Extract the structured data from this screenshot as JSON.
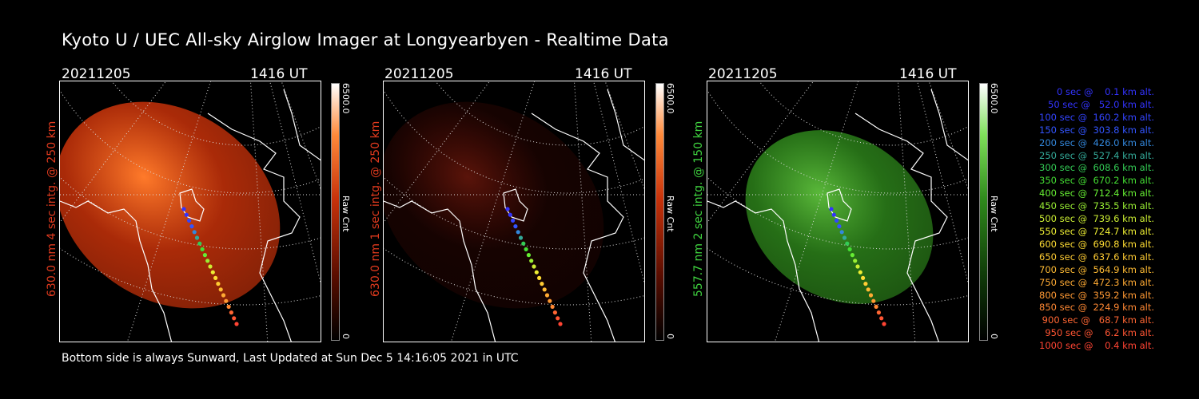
{
  "header": {
    "title": "Kyoto U / UEC All-sky Airglow Imager at Longyearbyen - Realtime Data"
  },
  "footer": {
    "text": "Bottom side is always Sunward, Last Updated at Sun Dec  5 14:16:05 2021 in UTC"
  },
  "panels": [
    {
      "date": "20211205",
      "time": "1416 UT",
      "side_label": "630.0 nm 4 sec intg. @ 250 km",
      "label_color": "#e03a1e",
      "cbar_max": "6500.0",
      "cbar_min": "0",
      "cbar_unit": "Raw Cnt",
      "glow_color": "#c8320a",
      "glow_level": 0.85
    },
    {
      "date": "20211205",
      "time": "1416 UT",
      "side_label": "630.0 nm 1 sec intg. @ 250 km",
      "label_color": "#e03a1e",
      "cbar_max": "6500.0",
      "cbar_min": "0",
      "cbar_unit": "Raw Cnt",
      "glow_color": "#4a0a04",
      "glow_level": 0.3
    },
    {
      "date": "20211205",
      "time": "1416 UT",
      "side_label": "557.7 nm 2 sec intg. @ 150 km",
      "label_color": "#3fd23f",
      "cbar_max": "6500.0",
      "cbar_min": "0",
      "cbar_unit": "Raw Cnt",
      "glow_color": "#2f8a1c",
      "glow_level": 0.8
    }
  ],
  "colors": {
    "red_scale_top": "#ff3a0a",
    "green_scale_top": "#3fcf1f"
  },
  "legend": [
    {
      "text": "   0 sec @    0.1 km alt.",
      "color": "#3333ff"
    },
    {
      "text": "  50 sec @   52.0 km alt.",
      "color": "#3333ff"
    },
    {
      "text": " 100 sec @  160.2 km alt.",
      "color": "#3344ff"
    },
    {
      "text": " 150 sec @  303.8 km alt.",
      "color": "#3355ff"
    },
    {
      "text": " 200 sec @  426.0 km alt.",
      "color": "#3388dd"
    },
    {
      "text": " 250 sec @  527.4 km alt.",
      "color": "#33aa99"
    },
    {
      "text": " 300 sec @  608.6 km alt.",
      "color": "#33cc55"
    },
    {
      "text": " 350 sec @  670.2 km alt.",
      "color": "#44dd33"
    },
    {
      "text": " 400 sec @  712.4 km alt.",
      "color": "#66ee33"
    },
    {
      "text": " 450 sec @  735.5 km alt.",
      "color": "#99ee33"
    },
    {
      "text": " 500 sec @  739.6 km alt.",
      "color": "#ccee33"
    },
    {
      "text": " 550 sec @  724.7 km alt.",
      "color": "#eeee33"
    },
    {
      "text": " 600 sec @  690.8 km alt.",
      "color": "#ffdd33"
    },
    {
      "text": " 650 sec @  637.6 km alt.",
      "color": "#ffcc33"
    },
    {
      "text": " 700 sec @  564.9 km alt.",
      "color": "#ffbb33"
    },
    {
      "text": " 750 sec @  472.3 km alt.",
      "color": "#ffaa33"
    },
    {
      "text": " 800 sec @  359.2 km alt.",
      "color": "#ff9933"
    },
    {
      "text": " 850 sec @  224.9 km alt.",
      "color": "#ff8833"
    },
    {
      "text": " 900 sec @   68.7 km alt.",
      "color": "#ff6633"
    },
    {
      "text": " 950 sec @    6.2 km alt.",
      "color": "#ff5533"
    },
    {
      "text": "1000 sec @    0.4 km alt.",
      "color": "#ff4433"
    }
  ]
}
